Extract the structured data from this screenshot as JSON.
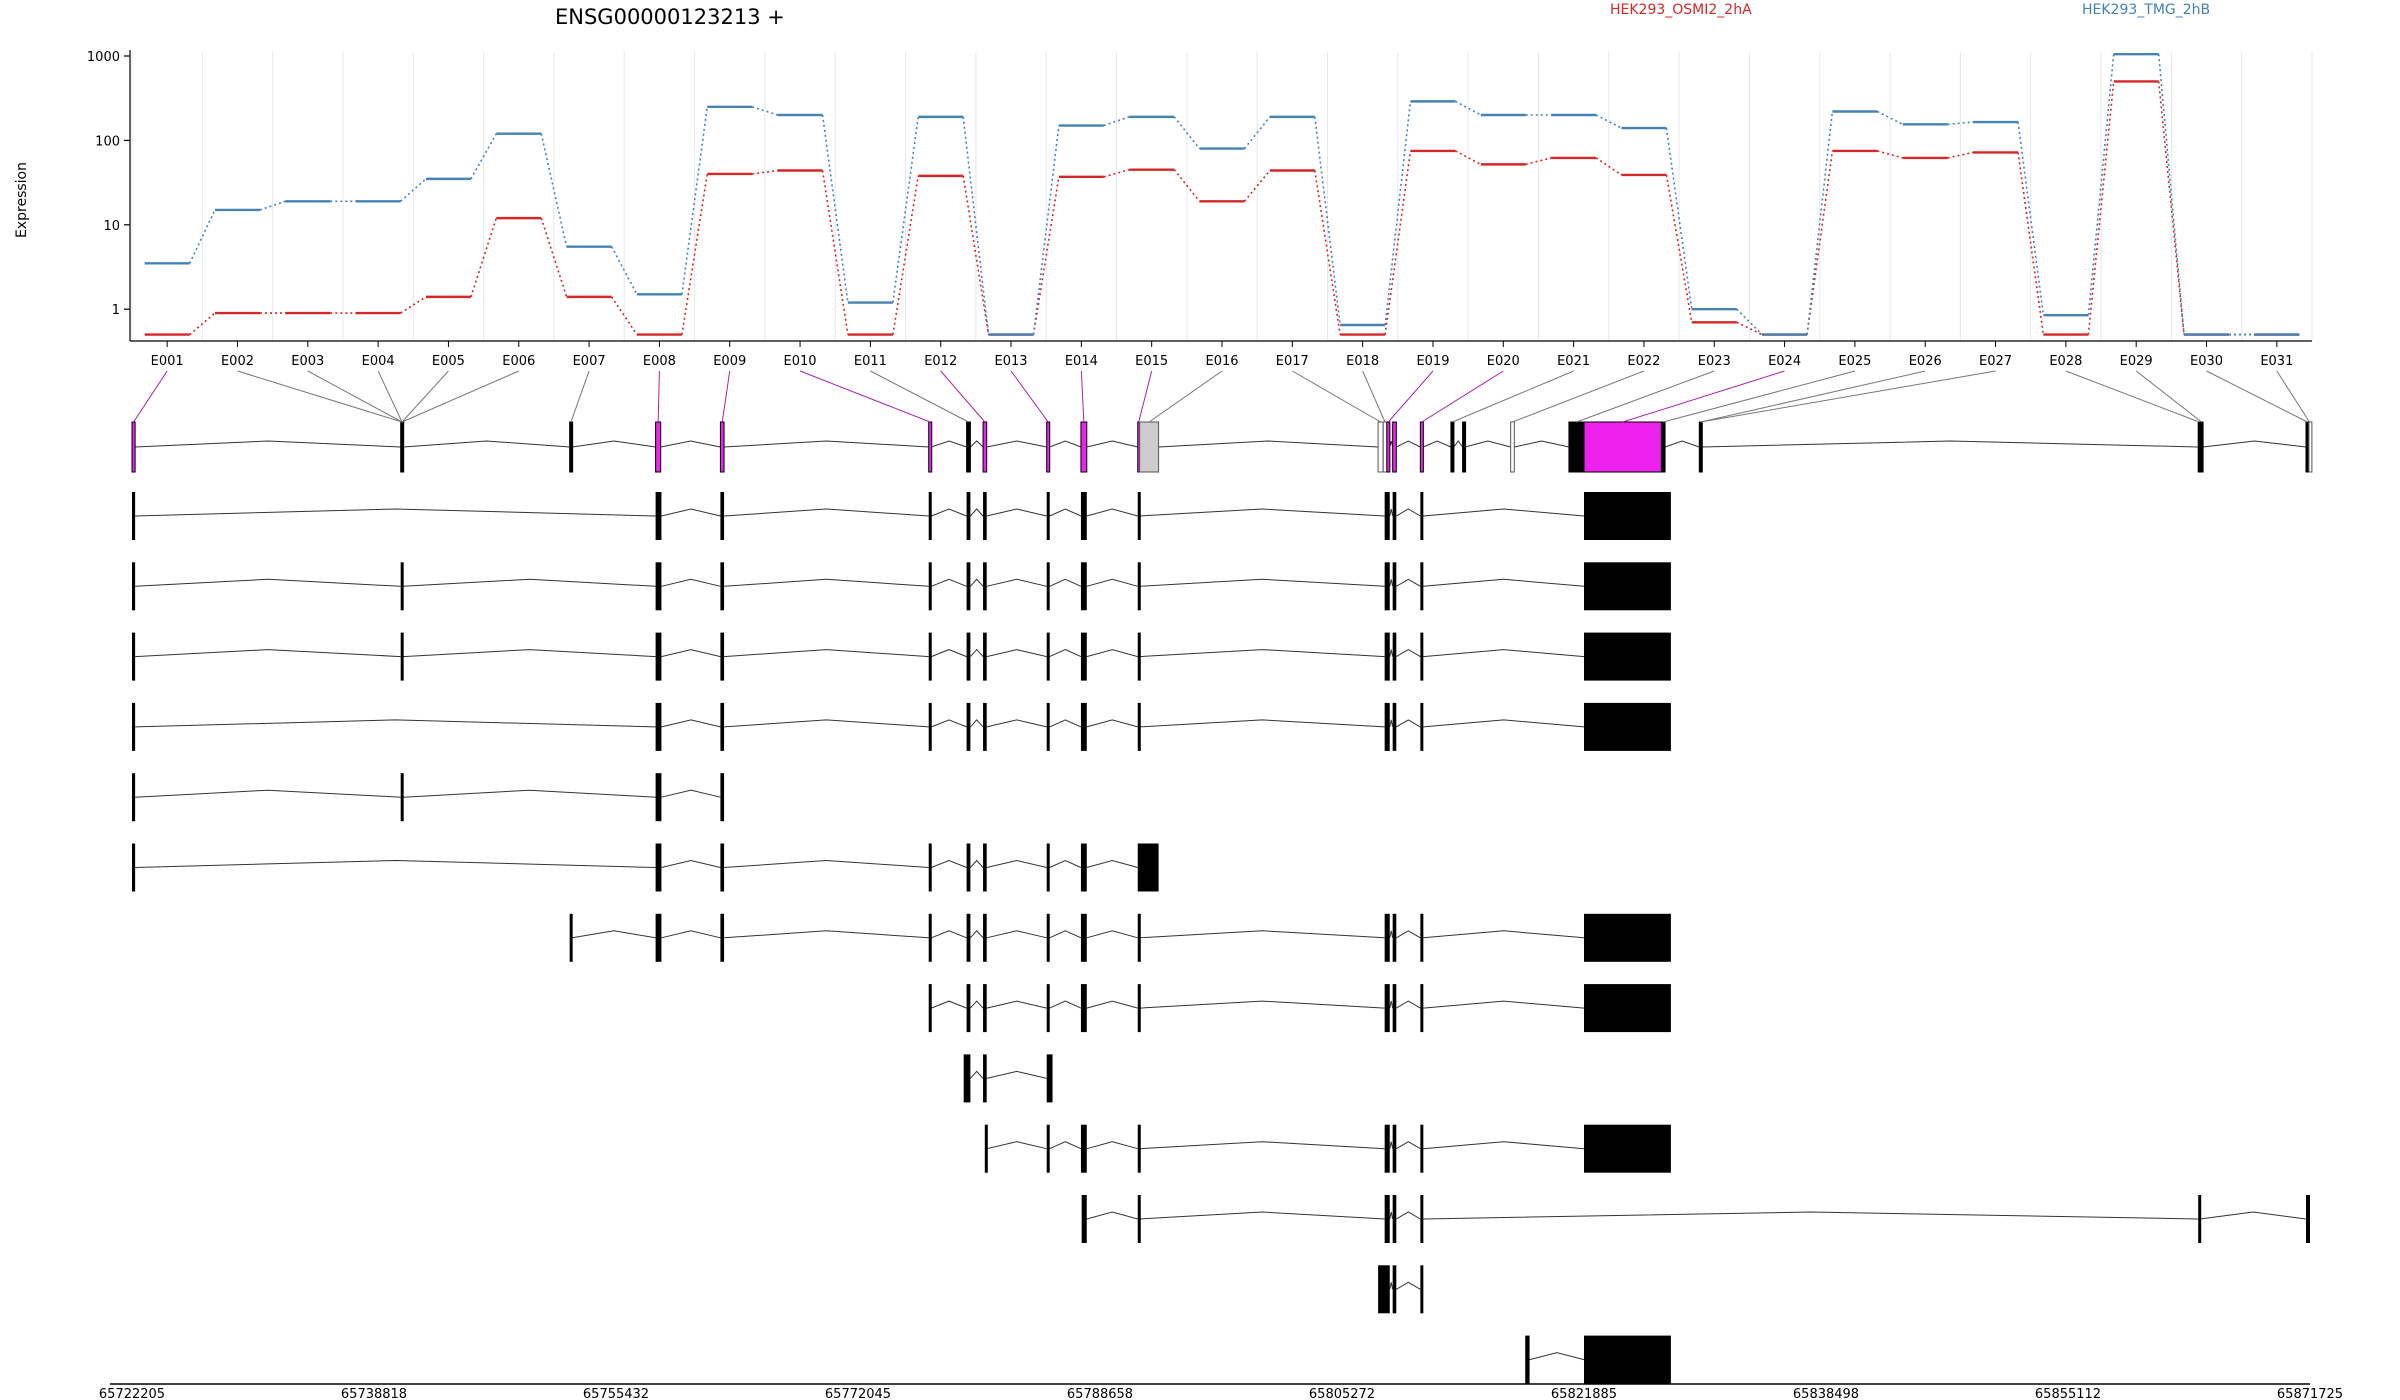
{
  "chart_data": {
    "type": "line",
    "title": "ENSG00000123213 +",
    "ylabel": "Expression",
    "yscale": "log",
    "yticks": [
      "1",
      "10",
      "100",
      "1000"
    ],
    "grid": true,
    "legend_position": "top-right",
    "colors": {
      "sampleA": "#d62728",
      "sampleB": "#4682b4",
      "highlight": "#ee22ee",
      "grey": "#cccccc",
      "link": "#aa22aa"
    },
    "categories": [
      "E001",
      "E002",
      "E003",
      "E004",
      "E005",
      "E006",
      "E007",
      "E008",
      "E009",
      "E010",
      "E011",
      "E012",
      "E013",
      "E014",
      "E015",
      "E016",
      "E017",
      "E018",
      "E019",
      "E020",
      "E021",
      "E022",
      "E023",
      "E024",
      "E025",
      "E026",
      "E027",
      "E028",
      "E029",
      "E030",
      "E031"
    ],
    "series": [
      {
        "name": "HEK293_OSMI2_2hA",
        "values": [
          0.5,
          0.9,
          0.9,
          0.9,
          1.4,
          12,
          1.4,
          0.5,
          40,
          44,
          0.5,
          38,
          0.5,
          37,
          45,
          19,
          44,
          0.5,
          75,
          52,
          62,
          39,
          0.7,
          0.5,
          75,
          62,
          72,
          0.5,
          500,
          0.5,
          0.5
        ]
      },
      {
        "name": "HEK293_TMG_2hB",
        "values": [
          3.5,
          15,
          19,
          19,
          35,
          120,
          5.5,
          1.5,
          250,
          200,
          1.2,
          190,
          0.5,
          150,
          190,
          80,
          190,
          0.65,
          290,
          200,
          200,
          140,
          1,
          0.5,
          220,
          155,
          165,
          0.85,
          1050,
          0.5,
          0.5
        ]
      }
    ],
    "genome_axis": {
      "ticks": [
        "65722205",
        "65738818",
        "65755432",
        "65772045",
        "65788658",
        "65805272",
        "65821885",
        "65838498",
        "65855112",
        "65871725"
      ],
      "start": 65722205,
      "end": 65871725
    },
    "exon_coords": [
      [
        65722205,
        65722420
      ],
      [
        65740650,
        65740830
      ],
      [
        65752250,
        65752430
      ],
      [
        65758150,
        65758500
      ],
      [
        65762600,
        65762850
      ],
      [
        65776900,
        65777080
      ],
      [
        65779500,
        65779760
      ],
      [
        65780630,
        65780880
      ],
      [
        65785000,
        65785200
      ],
      [
        65787350,
        65787750
      ],
      [
        65791250,
        65791380
      ],
      [
        65791380,
        65792680
      ],
      [
        65807750,
        65808100
      ],
      [
        65808100,
        65808350
      ],
      [
        65808350,
        65808550
      ],
      [
        65808750,
        65809000
      ],
      [
        65810650,
        65810850
      ],
      [
        65812750,
        65812950
      ],
      [
        65813550,
        65813710
      ],
      [
        65816850,
        65817100
      ],
      [
        65820850,
        65821885
      ],
      [
        65821885,
        65827200
      ],
      [
        65827200,
        65827450
      ],
      [
        65829800,
        65830000
      ],
      [
        65864050,
        65864180
      ],
      [
        65864180,
        65864380
      ],
      [
        65871450,
        65871650
      ],
      [
        65871650,
        65871725
      ]
    ],
    "exon_marker_map": [
      0,
      1,
      1,
      1,
      1,
      1,
      2,
      3,
      4,
      5,
      6,
      7,
      8,
      9,
      10,
      11,
      12,
      13,
      14,
      16,
      17,
      19,
      20,
      21,
      22,
      23,
      23,
      24,
      25,
      26,
      27
    ],
    "highlight_exons": [
      0,
      3,
      4,
      5,
      7,
      8,
      9,
      10,
      14,
      15,
      16,
      21
    ],
    "grey_exons": [
      11
    ],
    "open_exons": [
      12,
      13,
      19,
      27
    ],
    "transcripts": [
      {
        "exons": [
          [
            65722205,
            65722420
          ],
          [
            65758150,
            65758550
          ],
          [
            65762600,
            65762850
          ],
          [
            65776900,
            65777080
          ],
          [
            65779500,
            65779760
          ],
          [
            65780630,
            65780880
          ],
          [
            65785000,
            65785200
          ],
          [
            65787350,
            65787750
          ],
          [
            65791250,
            65791380
          ],
          [
            65808200,
            65808550
          ],
          [
            65808750,
            65809000
          ],
          [
            65810650,
            65810850
          ],
          [
            65821885,
            65827850
          ]
        ]
      },
      {
        "exons": [
          [
            65722205,
            65722420
          ],
          [
            65740650,
            65740830
          ],
          [
            65758150,
            65758550
          ],
          [
            65762600,
            65762850
          ],
          [
            65776900,
            65777080
          ],
          [
            65779500,
            65779760
          ],
          [
            65780630,
            65780880
          ],
          [
            65785000,
            65785200
          ],
          [
            65787350,
            65787750
          ],
          [
            65791250,
            65791380
          ],
          [
            65808200,
            65808550
          ],
          [
            65808750,
            65809000
          ],
          [
            65810650,
            65810850
          ],
          [
            65821885,
            65827850
          ]
        ]
      },
      {
        "exons": [
          [
            65722205,
            65722420
          ],
          [
            65740650,
            65740830
          ],
          [
            65758150,
            65758550
          ],
          [
            65762600,
            65762850
          ],
          [
            65776900,
            65777080
          ],
          [
            65779500,
            65779760
          ],
          [
            65780630,
            65780880
          ],
          [
            65785000,
            65785200
          ],
          [
            65787350,
            65787750
          ],
          [
            65791250,
            65791380
          ],
          [
            65808200,
            65808550
          ],
          [
            65808750,
            65809000
          ],
          [
            65810650,
            65810850
          ],
          [
            65821885,
            65827850
          ]
        ]
      },
      {
        "exons": [
          [
            65722205,
            65722420
          ],
          [
            65758150,
            65758550
          ],
          [
            65762600,
            65762850
          ],
          [
            65776900,
            65777080
          ],
          [
            65779500,
            65779760
          ],
          [
            65780630,
            65780880
          ],
          [
            65785000,
            65785200
          ],
          [
            65787350,
            65787750
          ],
          [
            65791250,
            65791380
          ],
          [
            65808200,
            65808550
          ],
          [
            65808750,
            65809000
          ],
          [
            65810650,
            65810850
          ],
          [
            65821885,
            65827850
          ]
        ]
      },
      {
        "exons": [
          [
            65722205,
            65722420
          ],
          [
            65740650,
            65740830
          ],
          [
            65758150,
            65758550
          ],
          [
            65762600,
            65762850
          ]
        ]
      },
      {
        "exons": [
          [
            65722205,
            65722420
          ],
          [
            65758150,
            65758550
          ],
          [
            65762600,
            65762850
          ],
          [
            65776900,
            65777080
          ],
          [
            65779500,
            65779760
          ],
          [
            65780630,
            65780880
          ],
          [
            65785000,
            65785200
          ],
          [
            65787350,
            65787750
          ],
          [
            65791250,
            65792680
          ]
        ]
      },
      {
        "exons": [
          [
            65752250,
            65752430
          ],
          [
            65758150,
            65758550
          ],
          [
            65762600,
            65762850
          ],
          [
            65776900,
            65777080
          ],
          [
            65779500,
            65779760
          ],
          [
            65780630,
            65780880
          ],
          [
            65785000,
            65785200
          ],
          [
            65787350,
            65787750
          ],
          [
            65791250,
            65791380
          ],
          [
            65808200,
            65808550
          ],
          [
            65808750,
            65809000
          ],
          [
            65810650,
            65810850
          ],
          [
            65821885,
            65827850
          ]
        ]
      },
      {
        "exons": [
          [
            65776900,
            65777080
          ],
          [
            65779500,
            65779760
          ],
          [
            65780630,
            65780880
          ],
          [
            65785000,
            65785200
          ],
          [
            65787350,
            65787750
          ],
          [
            65791250,
            65791380
          ],
          [
            65808200,
            65808550
          ],
          [
            65808750,
            65809000
          ],
          [
            65810650,
            65810850
          ],
          [
            65821885,
            65827850
          ]
        ]
      },
      {
        "exons": [
          [
            65779300,
            65779760
          ],
          [
            65780630,
            65780880
          ],
          [
            65785000,
            65785400
          ]
        ]
      },
      {
        "exons": [
          [
            65780750,
            65780880
          ],
          [
            65785000,
            65785200
          ],
          [
            65787350,
            65787750
          ],
          [
            65791250,
            65791380
          ],
          [
            65808200,
            65808550
          ],
          [
            65808750,
            65809000
          ],
          [
            65810650,
            65810850
          ],
          [
            65821885,
            65827850
          ]
        ]
      },
      {
        "exons": [
          [
            65787400,
            65787750
          ],
          [
            65791250,
            65791380
          ],
          [
            65808200,
            65808550
          ],
          [
            65808750,
            65809000
          ],
          [
            65810650,
            65810850
          ],
          [
            65864050,
            65864180
          ],
          [
            65871450,
            65871725
          ]
        ]
      },
      {
        "exons": [
          [
            65807750,
            65808550
          ],
          [
            65808750,
            65809000
          ],
          [
            65810650,
            65810850
          ]
        ]
      },
      {
        "exons": [
          [
            65817850,
            65818150
          ],
          [
            65821885,
            65827850
          ]
        ]
      }
    ]
  }
}
